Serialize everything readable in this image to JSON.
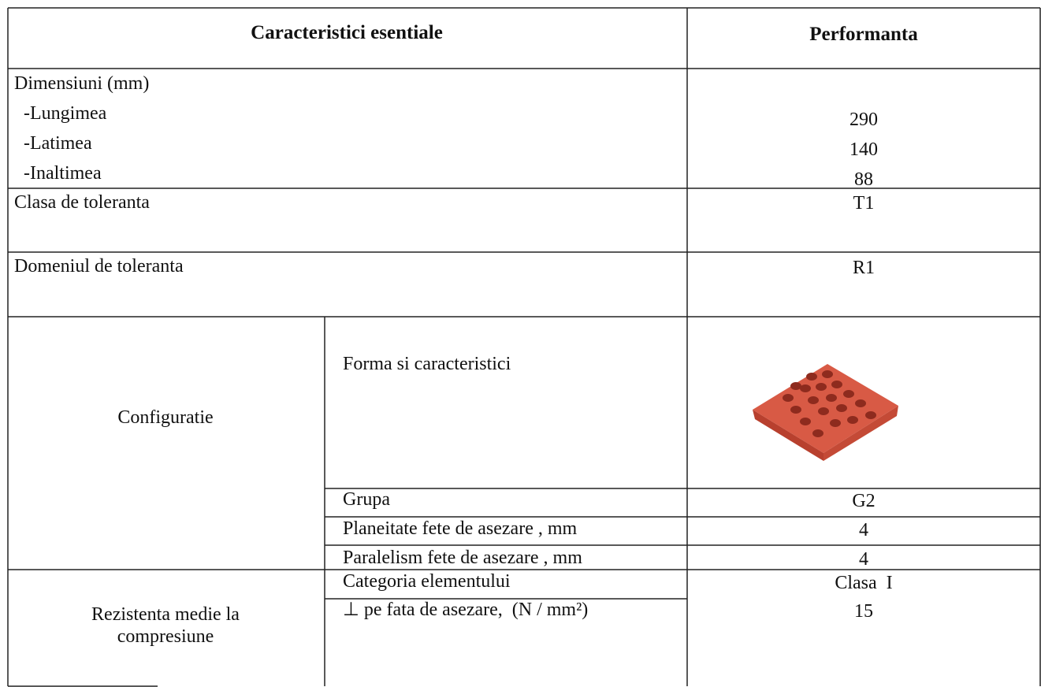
{
  "header": {
    "characteristics": "Caracteristici esentiale",
    "performance": "Performanta"
  },
  "dimensions": {
    "label": "Dimensiuni (mm)",
    "items": [
      {
        "label": "-Lungimea",
        "value": 290
      },
      {
        "label": "-Latimea",
        "value": 140
      },
      {
        "label": "-Inaltimea",
        "value": 88
      }
    ]
  },
  "tolerance_class": {
    "label": "Clasa de toleranta",
    "value": "T1"
  },
  "tolerance_range": {
    "label": "Domeniul de toleranta",
    "value": "R1"
  },
  "configuration": {
    "label": "Configuratie",
    "shape_label": "Forma si caracteristici",
    "rows": [
      {
        "label": "Grupa",
        "value": "G2"
      },
      {
        "label": "Planeitate fete de asezare , mm",
        "value": 4
      },
      {
        "label": "Paralelism fete de asezare , mm",
        "value": 4
      }
    ]
  },
  "resistance": {
    "label": "Rezistenta medie  la compresiune",
    "rows": [
      {
        "label": "Categoria elementului",
        "value": "Clasa  I"
      },
      {
        "label": "⊥ pe fata de asezare,  (N / mm²)",
        "value": 15
      }
    ]
  }
}
